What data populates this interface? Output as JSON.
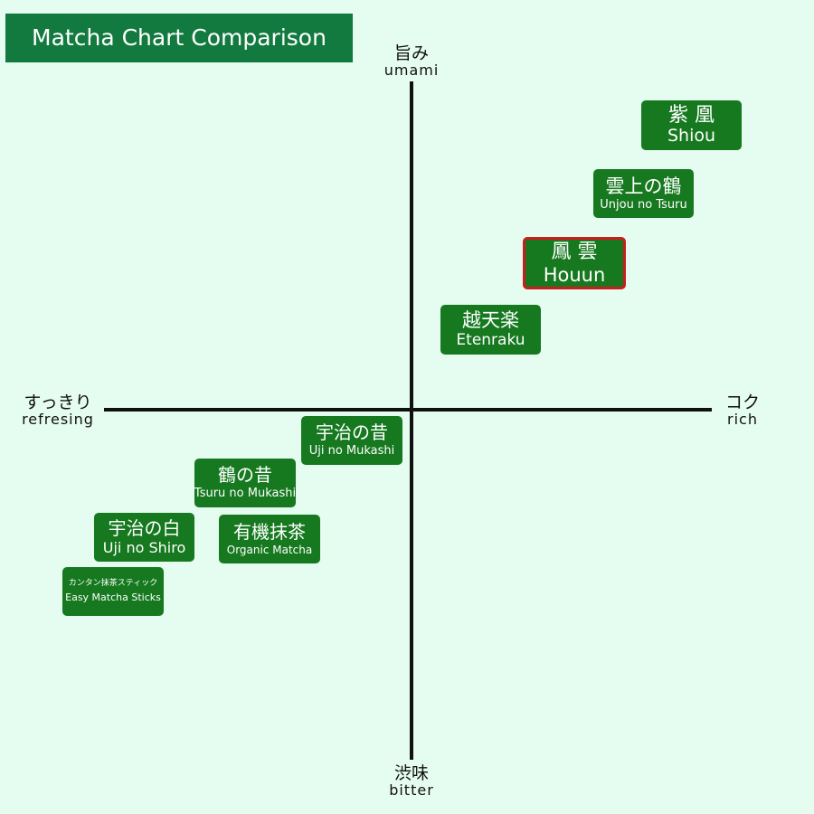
{
  "title": "Matcha Chart Comparison",
  "axes": {
    "top": {
      "jp": "旨み",
      "en": "umami"
    },
    "bottom": {
      "jp": "渋味",
      "en": "bitter"
    },
    "left": {
      "jp": "すっきり",
      "en": "refresing"
    },
    "right": {
      "jp": "コク",
      "en": "rich"
    }
  },
  "products": [
    {
      "jp": "紫 凰",
      "en": "Shiou",
      "highlighted": false
    },
    {
      "jp": "雲上の鶴",
      "en": "Unjou no Tsuru",
      "highlighted": false
    },
    {
      "jp": "鳳 雲",
      "en": "Houun",
      "highlighted": true
    },
    {
      "jp": "越天楽",
      "en": "Etenraku",
      "highlighted": false
    },
    {
      "jp": "宇治の昔",
      "en": "Uji no Mukashi",
      "highlighted": false
    },
    {
      "jp": "鶴の昔",
      "en": "Tsuru no Mukashi",
      "highlighted": false
    },
    {
      "jp": "宇治の白",
      "en": "Uji no Shiro",
      "highlighted": false
    },
    {
      "jp": "有機抹茶",
      "en": "Organic Matcha",
      "highlighted": false
    },
    {
      "jp": "カンタン抹茶スティック",
      "en": "Easy Matcha Sticks",
      "highlighted": false
    }
  ],
  "colors": {
    "background": "#e5fcf1",
    "title_bg": "#137a3f",
    "box_bg": "#16791f",
    "highlight_border": "#cc1d1d"
  }
}
